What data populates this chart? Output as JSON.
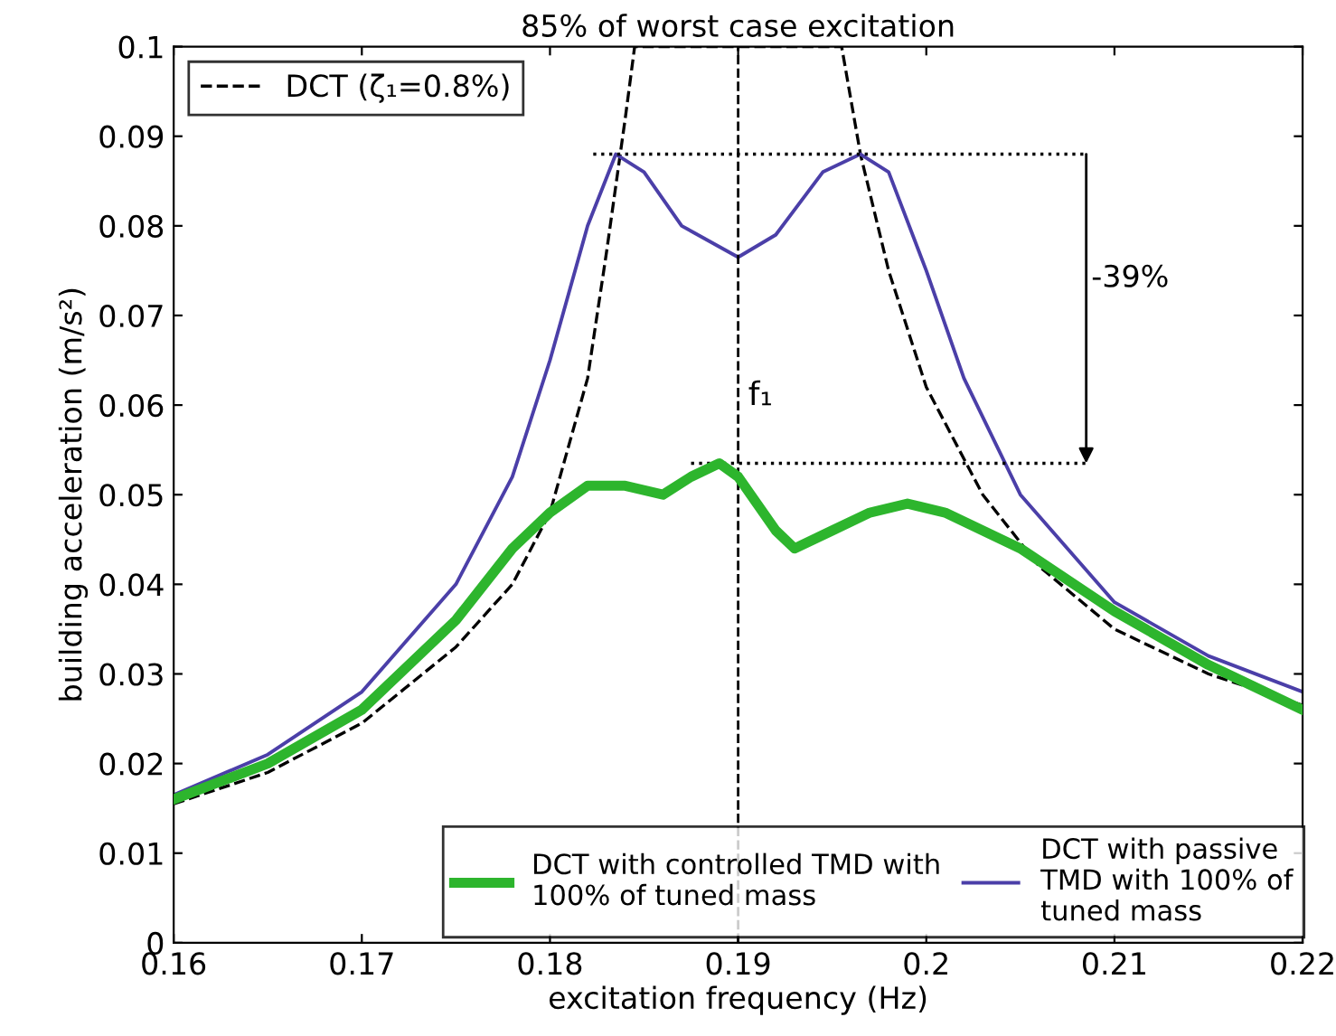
{
  "chart_data": {
    "type": "line",
    "title": "85% of worst case excitation",
    "xlabel": "excitation frequency (Hz)",
    "ylabel": "building acceleration (m/s²)",
    "xlim": [
      0.16,
      0.22
    ],
    "xticks": [
      0.16,
      0.17,
      0.18,
      0.19,
      0.2,
      0.21,
      0.22
    ],
    "ylim": [
      0,
      0.1
    ],
    "yticks": [
      0,
      0.01,
      0.02,
      0.03,
      0.04,
      0.05,
      0.06,
      0.07,
      0.08,
      0.09,
      0.1
    ],
    "grid": false,
    "legend": "bottom",
    "series": [
      {
        "name": "DCT (ζ₁=0.8%)",
        "color": "#000000",
        "line_style": "dashed",
        "x": [
          0.16,
          0.165,
          0.17,
          0.175,
          0.178,
          0.18,
          0.182,
          0.183,
          0.184,
          0.1845,
          0.1955,
          0.1965,
          0.198,
          0.2,
          0.203,
          0.206,
          0.21,
          0.215,
          0.22
        ],
        "values": [
          0.0155,
          0.019,
          0.0245,
          0.033,
          0.04,
          0.048,
          0.063,
          0.077,
          0.092,
          0.1,
          0.1,
          0.088,
          0.075,
          0.062,
          0.05,
          0.042,
          0.035,
          0.03,
          0.0265
        ]
      },
      {
        "name": "DCT with controlled TMD with\n100% of tuned mass",
        "color": "#2db52d",
        "line_style": "solid",
        "x": [
          0.16,
          0.165,
          0.17,
          0.175,
          0.178,
          0.18,
          0.182,
          0.184,
          0.186,
          0.1875,
          0.189,
          0.19,
          0.192,
          0.193,
          0.195,
          0.197,
          0.199,
          0.201,
          0.205,
          0.21,
          0.215,
          0.22
        ],
        "values": [
          0.016,
          0.02,
          0.026,
          0.036,
          0.044,
          0.048,
          0.051,
          0.051,
          0.05,
          0.052,
          0.0535,
          0.052,
          0.046,
          0.044,
          0.046,
          0.048,
          0.049,
          0.048,
          0.044,
          0.037,
          0.031,
          0.026
        ]
      },
      {
        "name": "DCT with passive\nTMD with 100% of\ntuned mass",
        "color": "#4b3fa8",
        "line_style": "solid",
        "x": [
          0.16,
          0.165,
          0.17,
          0.175,
          0.178,
          0.18,
          0.182,
          0.1835,
          0.185,
          0.187,
          0.19,
          0.192,
          0.1945,
          0.1965,
          0.198,
          0.2,
          0.202,
          0.205,
          0.21,
          0.215,
          0.22
        ],
        "values": [
          0.0165,
          0.021,
          0.028,
          0.04,
          0.052,
          0.065,
          0.08,
          0.088,
          0.086,
          0.08,
          0.0765,
          0.079,
          0.086,
          0.088,
          0.086,
          0.075,
          0.063,
          0.05,
          0.038,
          0.032,
          0.028
        ]
      },
      {
        "color": "#000000",
        "line_style": "dotted",
        "x": [
          0.1823,
          0.2085
        ],
        "values": [
          0.088,
          0.088
        ]
      },
      {
        "color": "#000000",
        "line_style": "dotted",
        "x": [
          0.1875,
          0.2085
        ],
        "values": [
          0.0535,
          0.0535
        ]
      }
    ],
    "ref_lines": [
      {
        "axis": "x",
        "value": 0.19,
        "label": "f₁",
        "line_style": "dashed",
        "color": "#000000"
      }
    ],
    "annotations": [
      "-39%"
    ]
  }
}
